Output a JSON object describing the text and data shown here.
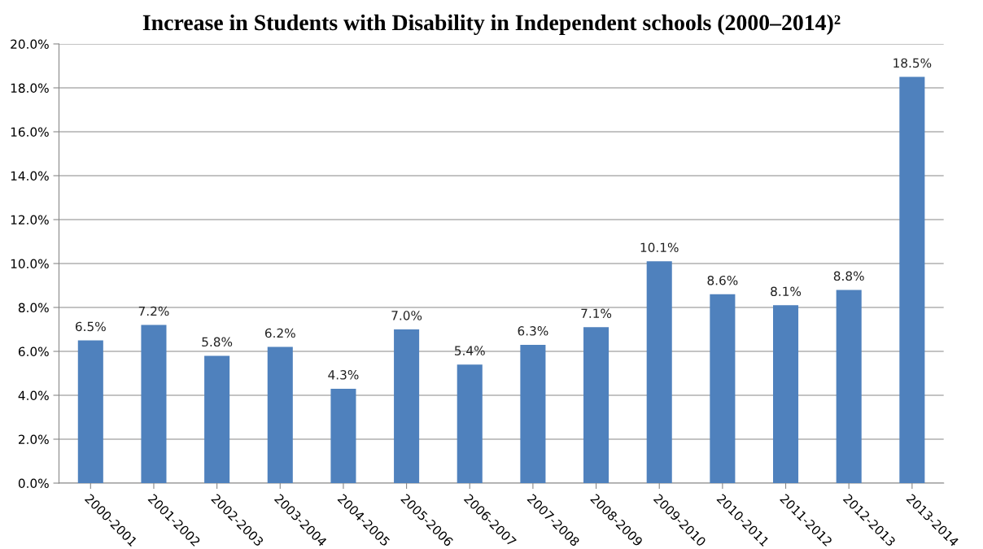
{
  "chart_data": {
    "type": "bar",
    "title": "Increase in Students with Disability in Independent schools (2000–2014)²",
    "categories": [
      "2000-2001",
      "2001-2002",
      "2002-2003",
      "2003-2004",
      "2004-2005",
      "2005-2006",
      "2006-2007",
      "2007-2008",
      "2008-2009",
      "2009-2010",
      "2010-2011",
      "2011-2012",
      "2012-2013",
      "2013-2014"
    ],
    "values": [
      6.5,
      7.2,
      5.8,
      6.2,
      4.3,
      7.0,
      5.4,
      6.3,
      7.1,
      10.1,
      8.6,
      8.1,
      8.8,
      18.5
    ],
    "value_labels": [
      "6.5%",
      "7.2%",
      "5.8%",
      "6.2%",
      "4.3%",
      "7.0%",
      "5.4%",
      "6.3%",
      "7.1%",
      "10.1%",
      "8.6%",
      "8.1%",
      "8.8%",
      "18.5%"
    ],
    "color": "#4f81bd",
    "ylim": [
      0,
      20
    ],
    "yticks": [
      {
        "value": 0,
        "label": "0.0%"
      },
      {
        "value": 2,
        "label": "2.0%"
      },
      {
        "value": 4,
        "label": "4.0%"
      },
      {
        "value": 6,
        "label": "6.0%"
      },
      {
        "value": 8,
        "label": "8.0%"
      },
      {
        "value": 10,
        "label": "10.0%"
      },
      {
        "value": 12,
        "label": "12.0%"
      },
      {
        "value": 14,
        "label": "14.0%"
      },
      {
        "value": 16,
        "label": "16.0%"
      },
      {
        "value": 18,
        "label": "18.0%"
      },
      {
        "value": 20,
        "label": "20.0%"
      }
    ],
    "grid": "y",
    "legend": false
  }
}
